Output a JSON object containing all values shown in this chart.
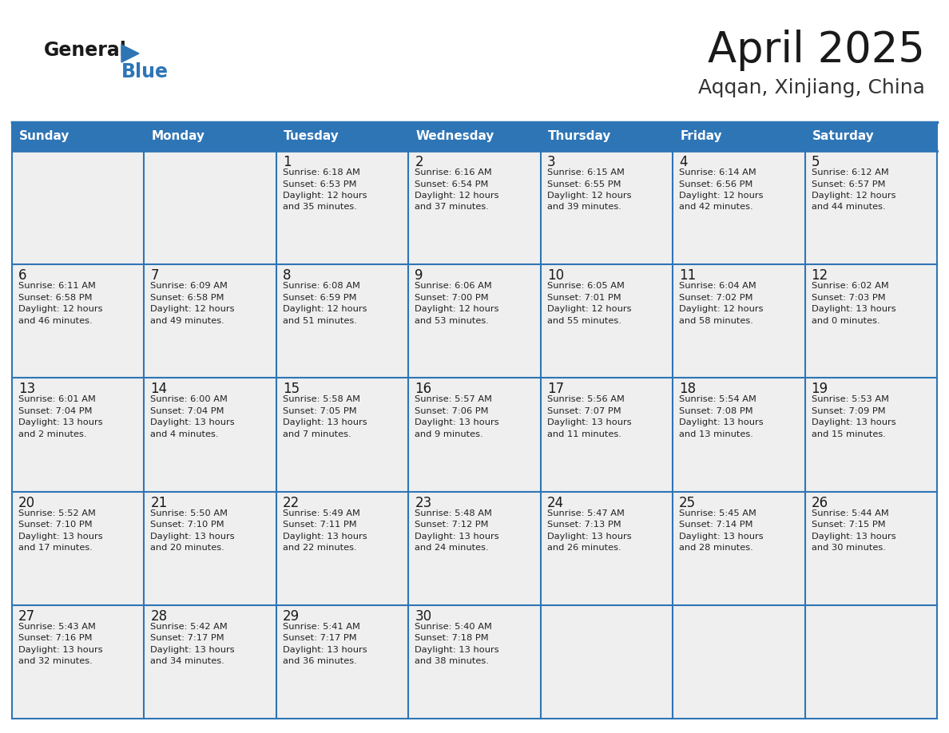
{
  "title": "April 2025",
  "subtitle": "Aqqan, Xinjiang, China",
  "header_bg": "#2E75B6",
  "header_text": "#FFFFFF",
  "cell_bg": "#EFEFEF",
  "cell_bg_empty": "#EFEFEF",
  "grid_line_color": "#2E75B6",
  "day_headers": [
    "Sunday",
    "Monday",
    "Tuesday",
    "Wednesday",
    "Thursday",
    "Friday",
    "Saturday"
  ],
  "title_color": "#1a1a1a",
  "subtitle_color": "#333333",
  "day_num_color": "#1a1a1a",
  "cell_text_color": "#222222",
  "logo_general_color": "#1a1a1a",
  "logo_blue_color": "#2E75B6",
  "weeks": [
    [
      {
        "day": "",
        "lines": []
      },
      {
        "day": "",
        "lines": []
      },
      {
        "day": "1",
        "lines": [
          "Sunrise: 6:18 AM",
          "Sunset: 6:53 PM",
          "Daylight: 12 hours",
          "and 35 minutes."
        ]
      },
      {
        "day": "2",
        "lines": [
          "Sunrise: 6:16 AM",
          "Sunset: 6:54 PM",
          "Daylight: 12 hours",
          "and 37 minutes."
        ]
      },
      {
        "day": "3",
        "lines": [
          "Sunrise: 6:15 AM",
          "Sunset: 6:55 PM",
          "Daylight: 12 hours",
          "and 39 minutes."
        ]
      },
      {
        "day": "4",
        "lines": [
          "Sunrise: 6:14 AM",
          "Sunset: 6:56 PM",
          "Daylight: 12 hours",
          "and 42 minutes."
        ]
      },
      {
        "day": "5",
        "lines": [
          "Sunrise: 6:12 AM",
          "Sunset: 6:57 PM",
          "Daylight: 12 hours",
          "and 44 minutes."
        ]
      }
    ],
    [
      {
        "day": "6",
        "lines": [
          "Sunrise: 6:11 AM",
          "Sunset: 6:58 PM",
          "Daylight: 12 hours",
          "and 46 minutes."
        ]
      },
      {
        "day": "7",
        "lines": [
          "Sunrise: 6:09 AM",
          "Sunset: 6:58 PM",
          "Daylight: 12 hours",
          "and 49 minutes."
        ]
      },
      {
        "day": "8",
        "lines": [
          "Sunrise: 6:08 AM",
          "Sunset: 6:59 PM",
          "Daylight: 12 hours",
          "and 51 minutes."
        ]
      },
      {
        "day": "9",
        "lines": [
          "Sunrise: 6:06 AM",
          "Sunset: 7:00 PM",
          "Daylight: 12 hours",
          "and 53 minutes."
        ]
      },
      {
        "day": "10",
        "lines": [
          "Sunrise: 6:05 AM",
          "Sunset: 7:01 PM",
          "Daylight: 12 hours",
          "and 55 minutes."
        ]
      },
      {
        "day": "11",
        "lines": [
          "Sunrise: 6:04 AM",
          "Sunset: 7:02 PM",
          "Daylight: 12 hours",
          "and 58 minutes."
        ]
      },
      {
        "day": "12",
        "lines": [
          "Sunrise: 6:02 AM",
          "Sunset: 7:03 PM",
          "Daylight: 13 hours",
          "and 0 minutes."
        ]
      }
    ],
    [
      {
        "day": "13",
        "lines": [
          "Sunrise: 6:01 AM",
          "Sunset: 7:04 PM",
          "Daylight: 13 hours",
          "and 2 minutes."
        ]
      },
      {
        "day": "14",
        "lines": [
          "Sunrise: 6:00 AM",
          "Sunset: 7:04 PM",
          "Daylight: 13 hours",
          "and 4 minutes."
        ]
      },
      {
        "day": "15",
        "lines": [
          "Sunrise: 5:58 AM",
          "Sunset: 7:05 PM",
          "Daylight: 13 hours",
          "and 7 minutes."
        ]
      },
      {
        "day": "16",
        "lines": [
          "Sunrise: 5:57 AM",
          "Sunset: 7:06 PM",
          "Daylight: 13 hours",
          "and 9 minutes."
        ]
      },
      {
        "day": "17",
        "lines": [
          "Sunrise: 5:56 AM",
          "Sunset: 7:07 PM",
          "Daylight: 13 hours",
          "and 11 minutes."
        ]
      },
      {
        "day": "18",
        "lines": [
          "Sunrise: 5:54 AM",
          "Sunset: 7:08 PM",
          "Daylight: 13 hours",
          "and 13 minutes."
        ]
      },
      {
        "day": "19",
        "lines": [
          "Sunrise: 5:53 AM",
          "Sunset: 7:09 PM",
          "Daylight: 13 hours",
          "and 15 minutes."
        ]
      }
    ],
    [
      {
        "day": "20",
        "lines": [
          "Sunrise: 5:52 AM",
          "Sunset: 7:10 PM",
          "Daylight: 13 hours",
          "and 17 minutes."
        ]
      },
      {
        "day": "21",
        "lines": [
          "Sunrise: 5:50 AM",
          "Sunset: 7:10 PM",
          "Daylight: 13 hours",
          "and 20 minutes."
        ]
      },
      {
        "day": "22",
        "lines": [
          "Sunrise: 5:49 AM",
          "Sunset: 7:11 PM",
          "Daylight: 13 hours",
          "and 22 minutes."
        ]
      },
      {
        "day": "23",
        "lines": [
          "Sunrise: 5:48 AM",
          "Sunset: 7:12 PM",
          "Daylight: 13 hours",
          "and 24 minutes."
        ]
      },
      {
        "day": "24",
        "lines": [
          "Sunrise: 5:47 AM",
          "Sunset: 7:13 PM",
          "Daylight: 13 hours",
          "and 26 minutes."
        ]
      },
      {
        "day": "25",
        "lines": [
          "Sunrise: 5:45 AM",
          "Sunset: 7:14 PM",
          "Daylight: 13 hours",
          "and 28 minutes."
        ]
      },
      {
        "day": "26",
        "lines": [
          "Sunrise: 5:44 AM",
          "Sunset: 7:15 PM",
          "Daylight: 13 hours",
          "and 30 minutes."
        ]
      }
    ],
    [
      {
        "day": "27",
        "lines": [
          "Sunrise: 5:43 AM",
          "Sunset: 7:16 PM",
          "Daylight: 13 hours",
          "and 32 minutes."
        ]
      },
      {
        "day": "28",
        "lines": [
          "Sunrise: 5:42 AM",
          "Sunset: 7:17 PM",
          "Daylight: 13 hours",
          "and 34 minutes."
        ]
      },
      {
        "day": "29",
        "lines": [
          "Sunrise: 5:41 AM",
          "Sunset: 7:17 PM",
          "Daylight: 13 hours",
          "and 36 minutes."
        ]
      },
      {
        "day": "30",
        "lines": [
          "Sunrise: 5:40 AM",
          "Sunset: 7:18 PM",
          "Daylight: 13 hours",
          "and 38 minutes."
        ]
      },
      {
        "day": "",
        "lines": []
      },
      {
        "day": "",
        "lines": []
      },
      {
        "day": "",
        "lines": []
      }
    ]
  ]
}
